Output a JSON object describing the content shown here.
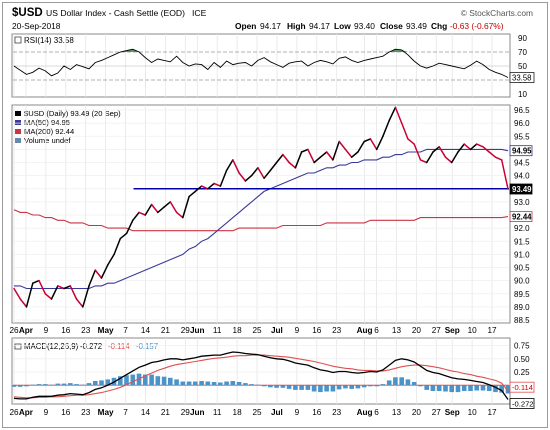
{
  "header": {
    "symbol": "$USD",
    "name": "US Dollar Index - Cash Settle (EOD)",
    "exchange": "ICE",
    "date": "20-Sep-2018",
    "open_label": "Open",
    "open": "94.17",
    "high_label": "High",
    "high": "94.17",
    "low_label": "Low",
    "low": "93.40",
    "close_label": "Close",
    "close": "93.49",
    "chg_label": "Chg",
    "chg": "-0.63 (-0.67%)",
    "credit": "© StockCharts.com"
  },
  "colors": {
    "price": "#000000",
    "down_segment": "#cc0033",
    "ma50": "#3a3a9a",
    "ma200": "#cc3344",
    "support": "#0000aa",
    "macd": "#000000",
    "signal": "#e05050",
    "histogram": "#4a94c9",
    "rsi_fill": "#3a8a3a",
    "ma200_tag": "#cc3344",
    "ma50_tag": "#333399"
  },
  "chart_data": [
    {
      "type": "line",
      "panel": "rsi",
      "legend": "RSI(14) 33.58",
      "ylim": [
        10,
        90
      ],
      "yticks": [
        "90",
        "70",
        "50",
        "30",
        "10"
      ],
      "value_tag": "33.58",
      "series": [
        {
          "name": "RSI(14)",
          "values": [
            50,
            44,
            38,
            41,
            47,
            43,
            36,
            40,
            50,
            45,
            52,
            49,
            46,
            55,
            58,
            62,
            66,
            70,
            72,
            74,
            70,
            62,
            55,
            60,
            58,
            56,
            64,
            55,
            50,
            53,
            52,
            45,
            55,
            48,
            57,
            52,
            54,
            55,
            50,
            58,
            62,
            56,
            52,
            48,
            54,
            56,
            57,
            50,
            55,
            58,
            56,
            53,
            61,
            63,
            58,
            55,
            58,
            60,
            62,
            64,
            70,
            74,
            73,
            66,
            57,
            50,
            47,
            50,
            54,
            52,
            50,
            48,
            46,
            51,
            57,
            52,
            45,
            41,
            38,
            33.58
          ]
        }
      ]
    },
    {
      "type": "line",
      "panel": "price",
      "legend": [
        {
          "label": "$USD (Daily) 93.49 (20 Sep)",
          "color": "#000000"
        },
        {
          "label": "MA(50) 94.95",
          "color": "#3a3a9a"
        },
        {
          "label": "MA(200) 92.44",
          "color": "#cc3344"
        },
        {
          "label": "Volume undef",
          "color": "#6688aa"
        }
      ],
      "ylim": [
        88.5,
        96.5
      ],
      "yticks": [
        "96.5",
        "96.0",
        "95.5",
        "95.0",
        "94.5",
        "94.0",
        "93.5",
        "93.0",
        "92.5",
        "92.0",
        "91.5",
        "91.0",
        "90.5",
        "90.0",
        "89.5",
        "89.0",
        "88.5"
      ],
      "value_tags": {
        "close": "93.49",
        "ma50": "94.95",
        "ma200": "92.44"
      },
      "support_level": 93.5,
      "series": [
        {
          "name": "$USD",
          "values": [
            89.7,
            89.3,
            89.0,
            89.9,
            90.0,
            89.5,
            89.3,
            89.8,
            89.7,
            89.8,
            89.3,
            89.0,
            89.8,
            90.4,
            90.1,
            90.6,
            91.0,
            91.6,
            91.8,
            92.3,
            92.6,
            92.5,
            92.9,
            92.6,
            92.8,
            93.0,
            92.6,
            92.4,
            93.2,
            93.4,
            93.6,
            93.5,
            93.7,
            93.6,
            94.2,
            94.6,
            94.1,
            93.8,
            94.0,
            94.3,
            93.9,
            94.2,
            94.5,
            94.8,
            94.5,
            94.3,
            94.9,
            95.0,
            94.5,
            94.7,
            94.9,
            94.6,
            95.3,
            95.0,
            94.7,
            94.9,
            95.3,
            95.4,
            95.0,
            95.5,
            96.1,
            96.6,
            96.0,
            95.4,
            95.2,
            94.6,
            94.5,
            94.9,
            95.1,
            94.7,
            94.5,
            94.9,
            95.2,
            95.0,
            95.2,
            95.1,
            94.9,
            94.7,
            94.6,
            93.49
          ]
        },
        {
          "name": "MA(50)",
          "values": [
            89.8,
            89.8,
            89.7,
            89.7,
            89.7,
            89.7,
            89.7,
            89.7,
            89.7,
            89.7,
            89.7,
            89.7,
            89.7,
            89.8,
            89.8,
            89.9,
            89.9,
            90.0,
            90.1,
            90.2,
            90.3,
            90.4,
            90.5,
            90.6,
            90.7,
            90.8,
            90.9,
            91.0,
            91.2,
            91.3,
            91.5,
            91.6,
            91.8,
            92.0,
            92.2,
            92.4,
            92.6,
            92.8,
            93.0,
            93.2,
            93.4,
            93.5,
            93.6,
            93.7,
            93.8,
            93.9,
            94.0,
            94.1,
            94.1,
            94.2,
            94.3,
            94.3,
            94.4,
            94.4,
            94.5,
            94.5,
            94.6,
            94.6,
            94.6,
            94.7,
            94.7,
            94.8,
            94.8,
            94.9,
            94.9,
            94.9,
            95.0,
            95.0,
            95.0,
            95.0,
            95.0,
            95.0,
            95.0,
            95.0,
            95.0,
            95.0,
            95.0,
            95.0,
            95.0,
            94.95
          ]
        },
        {
          "name": "MA(200)",
          "values": [
            92.7,
            92.6,
            92.6,
            92.5,
            92.5,
            92.4,
            92.4,
            92.3,
            92.3,
            92.2,
            92.2,
            92.2,
            92.1,
            92.1,
            92.1,
            92.0,
            92.0,
            92.0,
            92.0,
            91.9,
            91.9,
            91.9,
            91.9,
            91.9,
            91.9,
            91.9,
            91.9,
            91.9,
            91.9,
            91.9,
            91.9,
            91.9,
            91.9,
            91.9,
            91.9,
            91.9,
            92.0,
            92.0,
            92.0,
            92.0,
            92.0,
            92.0,
            92.0,
            92.1,
            92.1,
            92.1,
            92.1,
            92.1,
            92.1,
            92.1,
            92.2,
            92.2,
            92.2,
            92.2,
            92.2,
            92.2,
            92.2,
            92.3,
            92.3,
            92.3,
            92.3,
            92.3,
            92.3,
            92.3,
            92.3,
            92.4,
            92.4,
            92.4,
            92.4,
            92.4,
            92.4,
            92.4,
            92.4,
            92.4,
            92.4,
            92.4,
            92.4,
            92.4,
            92.4,
            92.44
          ]
        }
      ]
    },
    {
      "type": "line",
      "panel": "macd",
      "legend": [
        {
          "label": "MACD(12,26,9)",
          "color": "#000000"
        },
        {
          "label": "-0.272",
          "color": "#000000"
        },
        {
          "label": "-0.114",
          "color": "#e05050"
        },
        {
          "label": "-0.157",
          "color": "#4a94c9"
        }
      ],
      "ylim": [
        -0.3,
        0.8
      ],
      "yticks": [
        "0.75",
        "0.50",
        "0.25",
        "0.00"
      ],
      "value_tags": {
        "signal": "-0.114",
        "macd": "-0.272"
      },
      "series": [
        {
          "name": "MACD",
          "values": [
            -0.25,
            -0.26,
            -0.26,
            -0.23,
            -0.21,
            -0.21,
            -0.21,
            -0.19,
            -0.18,
            -0.16,
            -0.17,
            -0.18,
            -0.14,
            -0.08,
            -0.05,
            0.0,
            0.06,
            0.13,
            0.2,
            0.27,
            0.34,
            0.38,
            0.43,
            0.45,
            0.48,
            0.5,
            0.5,
            0.48,
            0.5,
            0.52,
            0.55,
            0.56,
            0.57,
            0.57,
            0.6,
            0.63,
            0.62,
            0.6,
            0.59,
            0.58,
            0.55,
            0.52,
            0.5,
            0.49,
            0.46,
            0.42,
            0.4,
            0.38,
            0.33,
            0.29,
            0.27,
            0.24,
            0.26,
            0.26,
            0.24,
            0.23,
            0.24,
            0.26,
            0.25,
            0.29,
            0.38,
            0.47,
            0.5,
            0.48,
            0.44,
            0.36,
            0.28,
            0.24,
            0.22,
            0.18,
            0.14,
            0.12,
            0.11,
            0.09,
            0.07,
            0.05,
            0.01,
            -0.04,
            -0.1,
            -0.272
          ]
        },
        {
          "name": "Signal",
          "values": [
            -0.22,
            -0.23,
            -0.24,
            -0.24,
            -0.23,
            -0.23,
            -0.22,
            -0.22,
            -0.21,
            -0.2,
            -0.19,
            -0.19,
            -0.18,
            -0.16,
            -0.14,
            -0.11,
            -0.08,
            -0.04,
            0.01,
            0.07,
            0.12,
            0.18,
            0.23,
            0.28,
            0.32,
            0.36,
            0.39,
            0.41,
            0.43,
            0.45,
            0.47,
            0.49,
            0.51,
            0.52,
            0.53,
            0.55,
            0.56,
            0.56,
            0.57,
            0.57,
            0.57,
            0.56,
            0.55,
            0.54,
            0.53,
            0.51,
            0.49,
            0.47,
            0.45,
            0.42,
            0.39,
            0.36,
            0.34,
            0.32,
            0.31,
            0.29,
            0.28,
            0.28,
            0.27,
            0.27,
            0.29,
            0.32,
            0.35,
            0.37,
            0.38,
            0.38,
            0.37,
            0.35,
            0.33,
            0.3,
            0.27,
            0.25,
            0.22,
            0.2,
            0.17,
            0.15,
            0.12,
            0.09,
            0.04,
            -0.114
          ]
        },
        {
          "name": "Histogram",
          "values": [
            -0.03,
            -0.03,
            -0.02,
            0.01,
            0.02,
            0.02,
            0.01,
            0.03,
            0.03,
            0.04,
            0.02,
            0.01,
            0.04,
            0.08,
            0.09,
            0.11,
            0.14,
            0.17,
            0.19,
            0.2,
            0.22,
            0.2,
            0.2,
            0.17,
            0.16,
            0.14,
            0.11,
            0.07,
            0.07,
            0.07,
            0.08,
            0.07,
            0.06,
            0.05,
            0.07,
            0.08,
            0.06,
            0.04,
            0.02,
            0.01,
            -0.02,
            -0.04,
            -0.05,
            -0.05,
            -0.07,
            -0.09,
            -0.09,
            -0.09,
            -0.12,
            -0.13,
            -0.12,
            -0.12,
            -0.08,
            -0.06,
            -0.07,
            -0.06,
            -0.04,
            -0.02,
            -0.02,
            0.02,
            0.09,
            0.15,
            0.15,
            0.11,
            0.06,
            -0.02,
            -0.09,
            -0.11,
            -0.11,
            -0.12,
            -0.13,
            -0.13,
            -0.11,
            -0.11,
            -0.1,
            -0.1,
            -0.11,
            -0.13,
            -0.14,
            -0.157
          ]
        }
      ]
    }
  ],
  "x_axis": {
    "labels": [
      {
        "text": "26",
        "i": 0,
        "bold": false
      },
      {
        "text": "Apr",
        "i": 3,
        "bold": true
      },
      {
        "text": "9",
        "i": 8,
        "bold": false
      },
      {
        "text": "16",
        "i": 13,
        "bold": false
      },
      {
        "text": "23",
        "i": 18,
        "bold": false
      },
      {
        "text": "May",
        "i": 23,
        "bold": true
      },
      {
        "text": "7",
        "i": 28,
        "bold": false
      },
      {
        "text": "14",
        "i": 33,
        "bold": false
      },
      {
        "text": "21",
        "i": 38,
        "bold": false
      },
      {
        "text": "29",
        "i": 43,
        "bold": false
      },
      {
        "text": "Jun",
        "i": 46,
        "bold": true
      },
      {
        "text": "11",
        "i": 51,
        "bold": false
      },
      {
        "text": "18",
        "i": 56,
        "bold": false
      },
      {
        "text": "25",
        "i": 61,
        "bold": false
      },
      {
        "text": "Jul",
        "i": 66,
        "bold": true
      },
      {
        "text": "9",
        "i": 71,
        "bold": false
      },
      {
        "text": "16",
        "i": 76,
        "bold": false
      },
      {
        "text": "23",
        "i": 81,
        "bold": false
      },
      {
        "text": "Aug",
        "i": 88,
        "bold": true
      },
      {
        "text": "6",
        "i": 91,
        "bold": false
      },
      {
        "text": "13",
        "i": 96,
        "bold": false
      },
      {
        "text": "20",
        "i": 101,
        "bold": false
      },
      {
        "text": "27",
        "i": 106,
        "bold": false
      },
      {
        "text": "Sep",
        "i": 110,
        "bold": true
      },
      {
        "text": "10",
        "i": 115,
        "bold": false
      },
      {
        "text": "17",
        "i": 120,
        "bold": false
      }
    ],
    "session_count": 125
  }
}
